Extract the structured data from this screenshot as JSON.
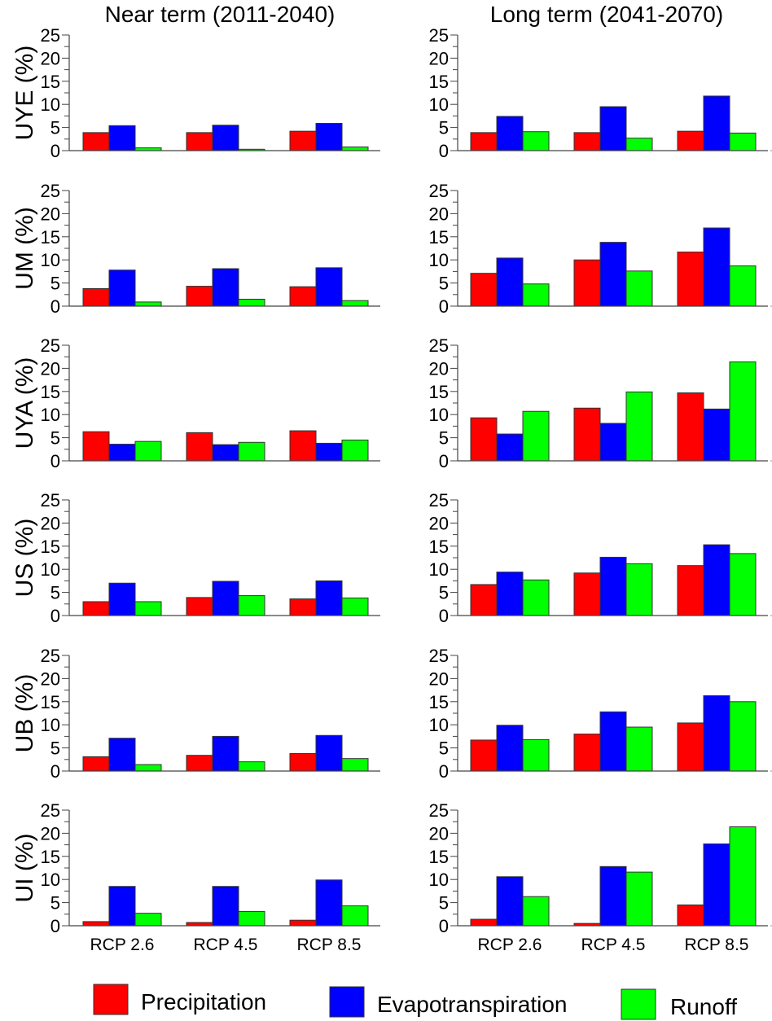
{
  "chart_data": {
    "type": "bar",
    "title": "",
    "column_titles": [
      "Near term (2011-2040)",
      "Long term (2041-2070)"
    ],
    "categories": [
      "RCP 2.6",
      "RCP 4.5",
      "RCP 8.5"
    ],
    "ylim": [
      0,
      25
    ],
    "yticks": [
      0,
      5,
      10,
      15,
      20,
      25
    ],
    "ytick_labels": [
      "0",
      "5",
      "10",
      "15",
      "20",
      "25"
    ],
    "grid": false,
    "legend_placement": "bottom",
    "series_names": [
      "Precipitation",
      "Evapotranspiration",
      "Runoff"
    ],
    "series_colors": [
      "#ff0000",
      "#0000ff",
      "#00ff00"
    ],
    "panels": [
      {
        "row_label": "UYE (%)",
        "period": "Near term (2011-2040)",
        "series": [
          {
            "name": "Precipitation",
            "values": [
              3.9,
              3.9,
              4.2
            ]
          },
          {
            "name": "Evapotranspiration",
            "values": [
              5.4,
              5.5,
              5.9
            ]
          },
          {
            "name": "Runoff",
            "values": [
              0.6,
              0.3,
              0.8
            ]
          }
        ]
      },
      {
        "row_label": "UYE (%)",
        "period": "Long term (2041-2070)",
        "series": [
          {
            "name": "Precipitation",
            "values": [
              3.9,
              3.9,
              4.2
            ]
          },
          {
            "name": "Evapotranspiration",
            "values": [
              7.4,
              9.5,
              11.8
            ]
          },
          {
            "name": "Runoff",
            "values": [
              4.1,
              2.7,
              3.8
            ]
          }
        ]
      },
      {
        "row_label": "UM (%)",
        "period": "Near term (2011-2040)",
        "series": [
          {
            "name": "Precipitation",
            "values": [
              3.8,
              4.3,
              4.2
            ]
          },
          {
            "name": "Evapotranspiration",
            "values": [
              7.8,
              8.1,
              8.3
            ]
          },
          {
            "name": "Runoff",
            "values": [
              0.9,
              1.5,
              1.2
            ]
          }
        ]
      },
      {
        "row_label": "UM (%)",
        "period": "Long term (2041-2070)",
        "series": [
          {
            "name": "Precipitation",
            "values": [
              7.1,
              10.0,
              11.7
            ]
          },
          {
            "name": "Evapotranspiration",
            "values": [
              10.4,
              13.8,
              16.9
            ]
          },
          {
            "name": "Runoff",
            "values": [
              4.8,
              7.6,
              8.7
            ]
          }
        ]
      },
      {
        "row_label": "UYA (%)",
        "period": "Near term (2011-2040)",
        "series": [
          {
            "name": "Precipitation",
            "values": [
              6.3,
              6.1,
              6.5
            ]
          },
          {
            "name": "Evapotranspiration",
            "values": [
              3.6,
              3.5,
              3.8
            ]
          },
          {
            "name": "Runoff",
            "values": [
              4.2,
              4.0,
              4.5
            ]
          }
        ]
      },
      {
        "row_label": "UYA (%)",
        "period": "Long term (2041-2070)",
        "series": [
          {
            "name": "Precipitation",
            "values": [
              9.3,
              11.4,
              14.7
            ]
          },
          {
            "name": "Evapotranspiration",
            "values": [
              5.8,
              8.1,
              11.2
            ]
          },
          {
            "name": "Runoff",
            "values": [
              10.7,
              14.9,
              21.4
            ]
          }
        ]
      },
      {
        "row_label": "US (%)",
        "period": "Near term (2011-2040)",
        "series": [
          {
            "name": "Precipitation",
            "values": [
              3.0,
              3.9,
              3.6
            ]
          },
          {
            "name": "Evapotranspiration",
            "values": [
              7.0,
              7.4,
              7.5
            ]
          },
          {
            "name": "Runoff",
            "values": [
              3.0,
              4.3,
              3.8
            ]
          }
        ]
      },
      {
        "row_label": "US (%)",
        "period": "Long term (2041-2070)",
        "series": [
          {
            "name": "Precipitation",
            "values": [
              6.7,
              9.2,
              10.8
            ]
          },
          {
            "name": "Evapotranspiration",
            "values": [
              9.4,
              12.6,
              15.3
            ]
          },
          {
            "name": "Runoff",
            "values": [
              7.7,
              11.2,
              13.4
            ]
          }
        ]
      },
      {
        "row_label": "UB (%)",
        "period": "Near term (2011-2040)",
        "series": [
          {
            "name": "Precipitation",
            "values": [
              3.1,
              3.4,
              3.8
            ]
          },
          {
            "name": "Evapotranspiration",
            "values": [
              7.1,
              7.5,
              7.7
            ]
          },
          {
            "name": "Runoff",
            "values": [
              1.4,
              2.0,
              2.7
            ]
          }
        ]
      },
      {
        "row_label": "UB (%)",
        "period": "Long term (2041-2070)",
        "series": [
          {
            "name": "Precipitation",
            "values": [
              6.7,
              8.0,
              10.4
            ]
          },
          {
            "name": "Evapotranspiration",
            "values": [
              9.9,
              12.8,
              16.3
            ]
          },
          {
            "name": "Runoff",
            "values": [
              6.8,
              9.5,
              15.0
            ]
          }
        ]
      },
      {
        "row_label": "UI (%)",
        "period": "Near term (2011-2040)",
        "series": [
          {
            "name": "Precipitation",
            "values": [
              0.9,
              0.7,
              1.2
            ]
          },
          {
            "name": "Evapotranspiration",
            "values": [
              8.5,
              8.5,
              9.9
            ]
          },
          {
            "name": "Runoff",
            "values": [
              2.7,
              3.1,
              4.3
            ]
          }
        ]
      },
      {
        "row_label": "UI (%)",
        "period": "Long term (2041-2070)",
        "series": [
          {
            "name": "Precipitation",
            "values": [
              1.4,
              0.5,
              4.5
            ]
          },
          {
            "name": "Evapotranspiration",
            "values": [
              10.6,
              12.8,
              17.7
            ]
          },
          {
            "name": "Runoff",
            "values": [
              6.3,
              11.6,
              21.4
            ]
          }
        ]
      }
    ]
  },
  "legend": {
    "items": [
      {
        "label": "Precipitation",
        "color": "#ff0000"
      },
      {
        "label": "Evapotranspiration",
        "color": "#0000ff"
      },
      {
        "label": "Runoff",
        "color": "#00ff00"
      }
    ]
  }
}
